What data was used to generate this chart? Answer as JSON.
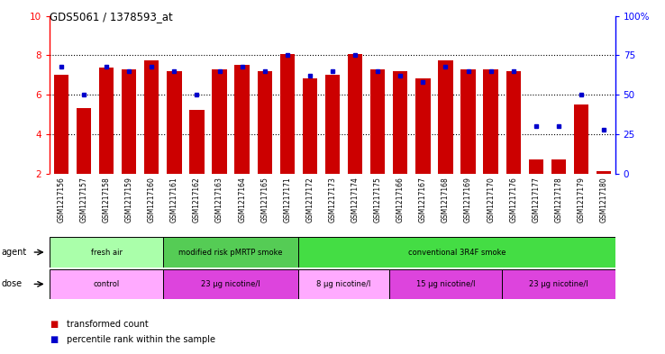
{
  "title": "GDS5061 / 1378593_at",
  "samples": [
    "GSM1217156",
    "GSM1217157",
    "GSM1217158",
    "GSM1217159",
    "GSM1217160",
    "GSM1217161",
    "GSM1217162",
    "GSM1217163",
    "GSM1217164",
    "GSM1217165",
    "GSM1217171",
    "GSM1217172",
    "GSM1217173",
    "GSM1217174",
    "GSM1217175",
    "GSM1217166",
    "GSM1217167",
    "GSM1217168",
    "GSM1217169",
    "GSM1217170",
    "GSM1217176",
    "GSM1217177",
    "GSM1217178",
    "GSM1217179",
    "GSM1217180"
  ],
  "bar_values": [
    7.0,
    5.3,
    7.4,
    7.3,
    7.75,
    7.2,
    5.25,
    7.3,
    7.5,
    7.2,
    8.05,
    6.85,
    7.0,
    8.05,
    7.3,
    7.2,
    6.85,
    7.75,
    7.3,
    7.3,
    7.2,
    2.7,
    2.7,
    5.5,
    2.1
  ],
  "percentile_values": [
    68,
    50,
    68,
    65,
    68,
    65,
    50,
    65,
    68,
    65,
    75,
    62,
    65,
    75,
    65,
    62,
    58,
    68,
    65,
    65,
    65,
    30,
    30,
    50,
    28
  ],
  "bar_color": "#cc0000",
  "dot_color": "#0000cc",
  "ymin": 2,
  "ymax": 10,
  "y_left_ticks": [
    2,
    4,
    6,
    8,
    10
  ],
  "y_right_ticks": [
    0,
    25,
    50,
    75,
    100
  ],
  "y_right_labels": [
    "0",
    "25",
    "50",
    "75",
    "100%"
  ],
  "dotted_lines": [
    4,
    6,
    8
  ],
  "agent_groups": [
    {
      "label": "fresh air",
      "start": 0,
      "end": 5,
      "color": "#aaffaa"
    },
    {
      "label": "modified risk pMRTP smoke",
      "start": 5,
      "end": 11,
      "color": "#55cc55"
    },
    {
      "label": "conventional 3R4F smoke",
      "start": 11,
      "end": 25,
      "color": "#44dd44"
    }
  ],
  "dose_groups": [
    {
      "label": "control",
      "start": 0,
      "end": 5,
      "color": "#ffaaff"
    },
    {
      "label": "23 μg nicotine/l",
      "start": 5,
      "end": 11,
      "color": "#dd44dd"
    },
    {
      "label": "8 μg nicotine/l",
      "start": 11,
      "end": 15,
      "color": "#ffaaff"
    },
    {
      "label": "15 μg nicotine/l",
      "start": 15,
      "end": 20,
      "color": "#dd44dd"
    },
    {
      "label": "23 μg nicotine/l",
      "start": 20,
      "end": 25,
      "color": "#dd44dd"
    }
  ],
  "tick_bg_color": "#cccccc",
  "legend_bar_color": "#cc0000",
  "legend_dot_color": "#0000cc",
  "legend_bar_label": "transformed count",
  "legend_dot_label": "percentile rank within the sample",
  "fig_width": 7.38,
  "fig_height": 3.93,
  "dpi": 100
}
